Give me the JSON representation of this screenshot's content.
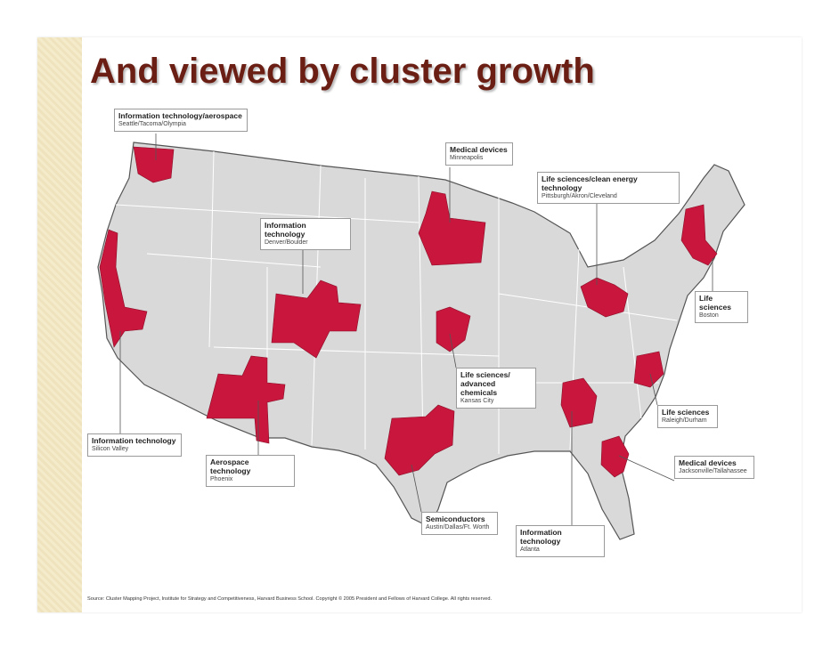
{
  "title": "And viewed by cluster growth",
  "callouts": [
    {
      "title": "Information technology/aerospace",
      "subtitle": "Seattle/Tacoma/Olympia"
    },
    {
      "title": "Medical devices",
      "subtitle": "Minneapolis"
    },
    {
      "title": "Life sciences/clean energy technology",
      "subtitle": "Pittsburgh/Akron/Cleveland"
    },
    {
      "title": "Information technology",
      "subtitle": "Denver/Boulder"
    },
    {
      "title": "Life sciences",
      "subtitle": "Boston"
    },
    {
      "title": "Life sciences/ advanced chemicals",
      "subtitle": "Kansas City"
    },
    {
      "title": "Life sciences",
      "subtitle": "Raleigh/Durham"
    },
    {
      "title": "Information technology",
      "subtitle": "Silicon Valley"
    },
    {
      "title": "Aerospace technology",
      "subtitle": "Phoenix"
    },
    {
      "title": "Medical devices",
      "subtitle": "Jacksonville/Tallahassee"
    },
    {
      "title": "Semiconductors",
      "subtitle": "Austin/Dallas/Ft. Worth"
    },
    {
      "title": "Information technology",
      "subtitle": "Atlanta"
    }
  ],
  "source": "Source: Cluster Mapping Project, Institute for Strategy and Competitiveness, Harvard Business School. Copyright © 2005 President and Fellows of Harvard College. All rights reserved."
}
